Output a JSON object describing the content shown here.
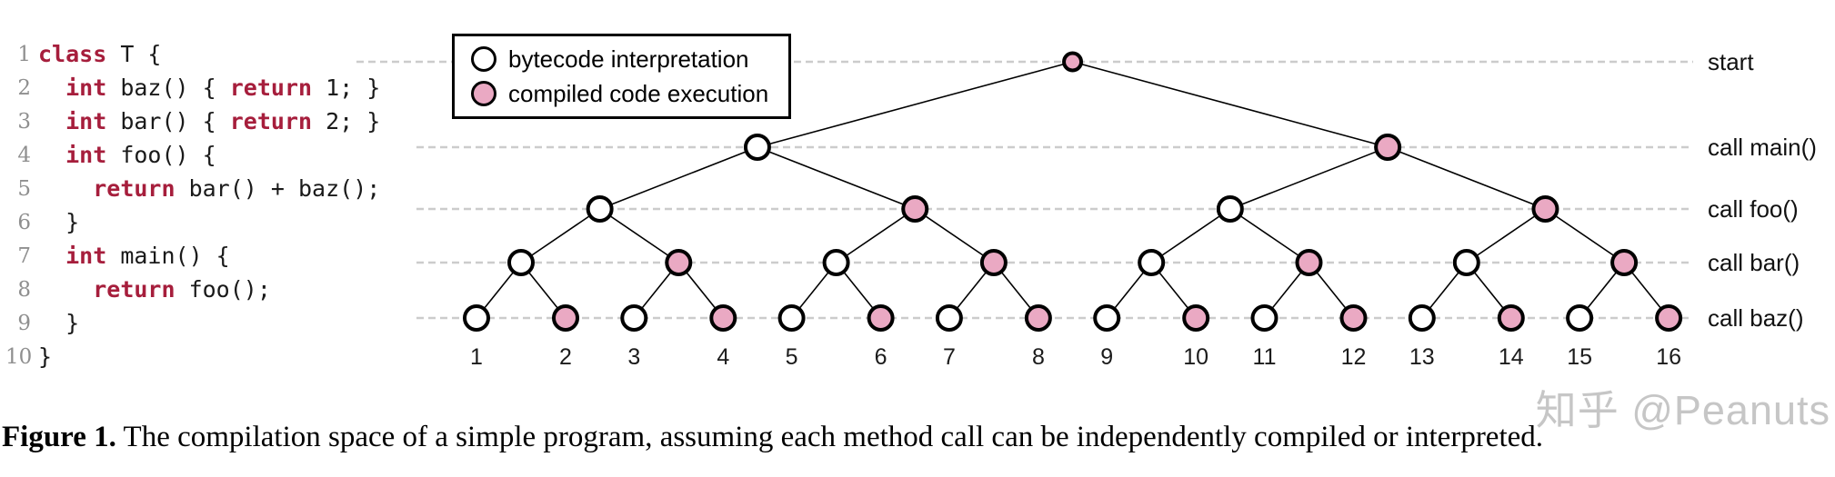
{
  "figure": {
    "caption_label": "Figure 1.",
    "caption_text": " The compilation space of a simple program, assuming each method call can be independently compiled or interpreted.",
    "watermark": "知乎 @Peanuts"
  },
  "code": {
    "lines": [
      {
        "num": "1",
        "segments": [
          {
            "text": "class",
            "keyword": true
          },
          {
            "text": " T {",
            "keyword": false
          }
        ]
      },
      {
        "num": "2",
        "segments": [
          {
            "text": "  ",
            "keyword": false
          },
          {
            "text": "int",
            "keyword": true
          },
          {
            "text": " baz() { ",
            "keyword": false
          },
          {
            "text": "return",
            "keyword": true
          },
          {
            "text": " 1; }",
            "keyword": false
          }
        ]
      },
      {
        "num": "3",
        "segments": [
          {
            "text": "  ",
            "keyword": false
          },
          {
            "text": "int",
            "keyword": true
          },
          {
            "text": " bar() { ",
            "keyword": false
          },
          {
            "text": "return",
            "keyword": true
          },
          {
            "text": " 2; }",
            "keyword": false
          }
        ]
      },
      {
        "num": "4",
        "segments": [
          {
            "text": "  ",
            "keyword": false
          },
          {
            "text": "int",
            "keyword": true
          },
          {
            "text": " foo() {",
            "keyword": false
          }
        ]
      },
      {
        "num": "5",
        "segments": [
          {
            "text": "    ",
            "keyword": false
          },
          {
            "text": "return",
            "keyword": true
          },
          {
            "text": " bar() + baz();",
            "keyword": false
          }
        ]
      },
      {
        "num": "6",
        "segments": [
          {
            "text": "  }",
            "keyword": false
          }
        ]
      },
      {
        "num": "7",
        "segments": [
          {
            "text": "  ",
            "keyword": false
          },
          {
            "text": "int",
            "keyword": true
          },
          {
            "text": " main() {",
            "keyword": false
          }
        ]
      },
      {
        "num": "8",
        "segments": [
          {
            "text": "    ",
            "keyword": false
          },
          {
            "text": "return",
            "keyword": true
          },
          {
            "text": " foo();",
            "keyword": false
          }
        ]
      },
      {
        "num": "9",
        "segments": [
          {
            "text": "  }",
            "keyword": false
          }
        ]
      },
      {
        "num": "10",
        "segments": [
          {
            "text": "}",
            "keyword": false
          }
        ]
      }
    ]
  },
  "legend": {
    "items": [
      {
        "icon": "interpreted-circle-icon",
        "label": "bytecode interpretation",
        "type": "interpreted"
      },
      {
        "icon": "compiled-circle-icon",
        "label": "compiled code execution",
        "type": "compiled"
      }
    ]
  },
  "tree": {
    "type": "binary-tree",
    "node_types": {
      "i": "bytecode interpretation",
      "c": "compiled code execution"
    },
    "levels": [
      {
        "label": "start",
        "nodes": [
          "c"
        ]
      },
      {
        "label": "call main()",
        "nodes": [
          "i",
          "c"
        ]
      },
      {
        "label": "call foo()",
        "nodes": [
          "i",
          "c",
          "i",
          "c"
        ]
      },
      {
        "label": "call bar()",
        "nodes": [
          "i",
          "c",
          "i",
          "c",
          "i",
          "c",
          "i",
          "c"
        ]
      },
      {
        "label": "call baz()",
        "nodes": [
          "i",
          "c",
          "i",
          "c",
          "i",
          "c",
          "i",
          "c",
          "i",
          "c",
          "i",
          "c",
          "i",
          "c",
          "i",
          "c"
        ]
      }
    ],
    "leaf_numbers": [
      "1",
      "2",
      "3",
      "4",
      "5",
      "6",
      "7",
      "8",
      "9",
      "10",
      "11",
      "12",
      "13",
      "14",
      "15",
      "16"
    ]
  },
  "colors": {
    "compiled_fill": "#eaa9c3",
    "interpreted_fill": "#ffffff",
    "node_stroke": "#000000",
    "edge": "#000000",
    "dashed_guide": "#cccccc",
    "keyword": "#a61e3c",
    "line_number": "#8f8f8f",
    "leaf_label": "#1b1b1b",
    "level_label": "#111111",
    "watermark": "#c6c6c6"
  }
}
